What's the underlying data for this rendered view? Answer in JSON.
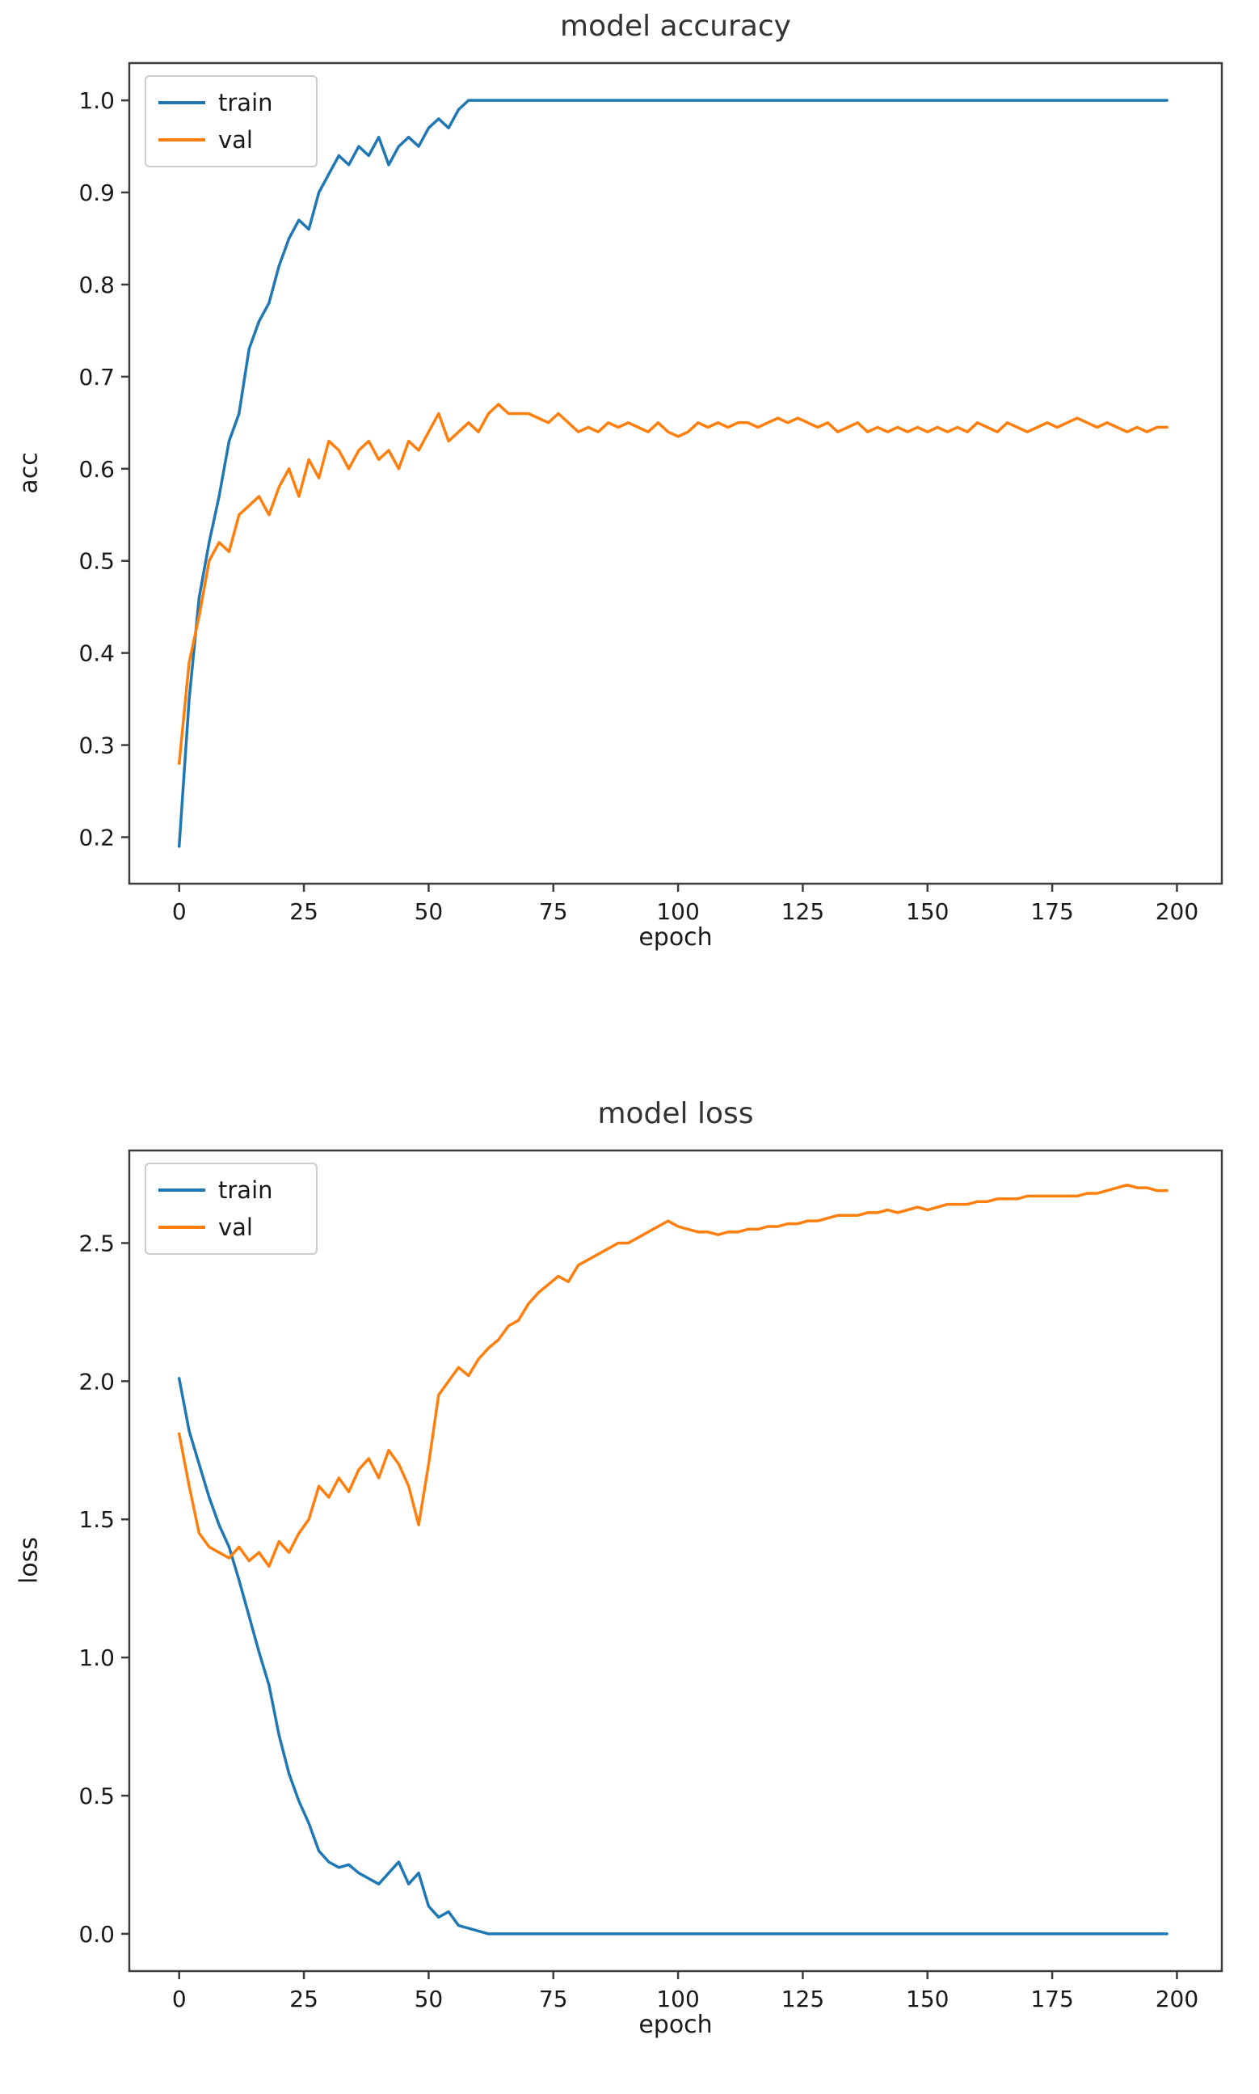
{
  "chart_data": [
    {
      "type": "line",
      "title": "model accuracy",
      "xlabel": "epoch",
      "ylabel": "acc",
      "xlim": [
        -10,
        209
      ],
      "ylim": [
        0.1495,
        1.0405
      ],
      "grid": false,
      "legend_position": "upper left",
      "xticks": [
        "0",
        "25",
        "50",
        "75",
        "100",
        "125",
        "150",
        "175",
        "200"
      ],
      "yticks": [
        "0.2",
        "0.3",
        "0.4",
        "0.5",
        "0.6",
        "0.7",
        "0.8",
        "0.9",
        "1.0"
      ],
      "x": [
        0,
        2,
        4,
        6,
        8,
        10,
        12,
        14,
        16,
        18,
        20,
        22,
        24,
        26,
        28,
        30,
        32,
        34,
        36,
        38,
        40,
        42,
        44,
        46,
        48,
        50,
        52,
        54,
        56,
        58,
        60,
        62,
        64,
        66,
        68,
        70,
        72,
        74,
        76,
        78,
        80,
        82,
        84,
        86,
        88,
        90,
        92,
        94,
        96,
        98,
        100,
        102,
        104,
        106,
        108,
        110,
        112,
        114,
        116,
        118,
        120,
        122,
        124,
        126,
        128,
        130,
        132,
        134,
        136,
        138,
        140,
        142,
        144,
        146,
        148,
        150,
        152,
        154,
        156,
        158,
        160,
        162,
        164,
        166,
        168,
        170,
        172,
        174,
        176,
        178,
        180,
        182,
        184,
        186,
        188,
        190,
        192,
        194,
        196,
        198
      ],
      "series": [
        {
          "name": "train",
          "color": "#1f77b4",
          "values": [
            0.19,
            0.35,
            0.46,
            0.52,
            0.57,
            0.63,
            0.66,
            0.73,
            0.76,
            0.78,
            0.82,
            0.85,
            0.87,
            0.86,
            0.9,
            0.92,
            0.94,
            0.93,
            0.95,
            0.94,
            0.96,
            0.93,
            0.95,
            0.96,
            0.95,
            0.97,
            0.98,
            0.97,
            0.99,
            1.0,
            1.0,
            1.0,
            1.0,
            1.0,
            1.0,
            1.0,
            1.0,
            1.0,
            1.0,
            1.0,
            1.0,
            1.0,
            1.0,
            1.0,
            1.0,
            1.0,
            1.0,
            1.0,
            1.0,
            1.0,
            1.0,
            1.0,
            1.0,
            1.0,
            1.0,
            1.0,
            1.0,
            1.0,
            1.0,
            1.0,
            1.0,
            1.0,
            1.0,
            1.0,
            1.0,
            1.0,
            1.0,
            1.0,
            1.0,
            1.0,
            1.0,
            1.0,
            1.0,
            1.0,
            1.0,
            1.0,
            1.0,
            1.0,
            1.0,
            1.0,
            1.0,
            1.0,
            1.0,
            1.0,
            1.0,
            1.0,
            1.0,
            1.0,
            1.0,
            1.0,
            1.0,
            1.0,
            1.0,
            1.0,
            1.0,
            1.0,
            1.0,
            1.0,
            1.0,
            1.0
          ]
        },
        {
          "name": "val",
          "color": "#ff7f0e",
          "values": [
            0.28,
            0.39,
            0.44,
            0.5,
            0.52,
            0.51,
            0.55,
            0.56,
            0.57,
            0.55,
            0.58,
            0.6,
            0.57,
            0.61,
            0.59,
            0.63,
            0.62,
            0.6,
            0.62,
            0.63,
            0.61,
            0.62,
            0.6,
            0.63,
            0.62,
            0.64,
            0.66,
            0.63,
            0.64,
            0.65,
            0.64,
            0.66,
            0.67,
            0.66,
            0.66,
            0.66,
            0.655,
            0.65,
            0.66,
            0.65,
            0.64,
            0.645,
            0.64,
            0.65,
            0.645,
            0.65,
            0.645,
            0.64,
            0.65,
            0.64,
            0.635,
            0.64,
            0.65,
            0.645,
            0.65,
            0.645,
            0.65,
            0.65,
            0.645,
            0.65,
            0.655,
            0.65,
            0.655,
            0.65,
            0.645,
            0.65,
            0.64,
            0.645,
            0.65,
            0.64,
            0.645,
            0.64,
            0.645,
            0.64,
            0.645,
            0.64,
            0.645,
            0.64,
            0.645,
            0.64,
            0.65,
            0.645,
            0.64,
            0.65,
            0.645,
            0.64,
            0.645,
            0.65,
            0.645,
            0.65,
            0.655,
            0.65,
            0.645,
            0.65,
            0.645,
            0.64,
            0.645,
            0.64,
            0.645,
            0.645
          ]
        }
      ]
    },
    {
      "type": "line",
      "title": "model loss",
      "xlabel": "epoch",
      "ylabel": "loss",
      "xlim": [
        -10,
        209
      ],
      "ylim": [
        -0.135,
        2.835
      ],
      "grid": false,
      "legend_position": "upper left",
      "xticks": [
        "0",
        "25",
        "50",
        "75",
        "100",
        "125",
        "150",
        "175",
        "200"
      ],
      "yticks": [
        "0.0",
        "0.5",
        "1.0",
        "1.5",
        "2.0",
        "2.5"
      ],
      "x": [
        0,
        2,
        4,
        6,
        8,
        10,
        12,
        14,
        16,
        18,
        20,
        22,
        24,
        26,
        28,
        30,
        32,
        34,
        36,
        38,
        40,
        42,
        44,
        46,
        48,
        50,
        52,
        54,
        56,
        58,
        60,
        62,
        64,
        66,
        68,
        70,
        72,
        74,
        76,
        78,
        80,
        82,
        84,
        86,
        88,
        90,
        92,
        94,
        96,
        98,
        100,
        102,
        104,
        106,
        108,
        110,
        112,
        114,
        116,
        118,
        120,
        122,
        124,
        126,
        128,
        130,
        132,
        134,
        136,
        138,
        140,
        142,
        144,
        146,
        148,
        150,
        152,
        154,
        156,
        158,
        160,
        162,
        164,
        166,
        168,
        170,
        172,
        174,
        176,
        178,
        180,
        182,
        184,
        186,
        188,
        190,
        192,
        194,
        196,
        198
      ],
      "series": [
        {
          "name": "train",
          "color": "#1f77b4",
          "values": [
            2.01,
            1.82,
            1.7,
            1.58,
            1.48,
            1.4,
            1.28,
            1.15,
            1.02,
            0.9,
            0.72,
            0.58,
            0.48,
            0.4,
            0.3,
            0.26,
            0.24,
            0.25,
            0.22,
            0.2,
            0.18,
            0.22,
            0.26,
            0.18,
            0.22,
            0.1,
            0.06,
            0.08,
            0.03,
            0.02,
            0.01,
            0.0,
            0.0,
            0.0,
            0.0,
            0.0,
            0.0,
            0.0,
            0.0,
            0.0,
            0.0,
            0.0,
            0.0,
            0.0,
            0.0,
            0.0,
            0.0,
            0.0,
            0.0,
            0.0,
            0.0,
            0.0,
            0.0,
            0.0,
            0.0,
            0.0,
            0.0,
            0.0,
            0.0,
            0.0,
            0.0,
            0.0,
            0.0,
            0.0,
            0.0,
            0.0,
            0.0,
            0.0,
            0.0,
            0.0,
            0.0,
            0.0,
            0.0,
            0.0,
            0.0,
            0.0,
            0.0,
            0.0,
            0.0,
            0.0,
            0.0,
            0.0,
            0.0,
            0.0,
            0.0,
            0.0,
            0.0,
            0.0,
            0.0,
            0.0,
            0.0,
            0.0,
            0.0,
            0.0,
            0.0,
            0.0,
            0.0,
            0.0,
            0.0,
            0.0
          ]
        },
        {
          "name": "val",
          "color": "#ff7f0e",
          "values": [
            1.81,
            1.62,
            1.45,
            1.4,
            1.38,
            1.36,
            1.4,
            1.35,
            1.38,
            1.33,
            1.42,
            1.38,
            1.45,
            1.5,
            1.62,
            1.58,
            1.65,
            1.6,
            1.68,
            1.72,
            1.65,
            1.75,
            1.7,
            1.62,
            1.48,
            1.7,
            1.95,
            2.0,
            2.05,
            2.02,
            2.08,
            2.12,
            2.15,
            2.2,
            2.22,
            2.28,
            2.32,
            2.35,
            2.38,
            2.36,
            2.42,
            2.44,
            2.46,
            2.48,
            2.5,
            2.5,
            2.52,
            2.54,
            2.56,
            2.58,
            2.56,
            2.55,
            2.54,
            2.54,
            2.53,
            2.54,
            2.54,
            2.55,
            2.55,
            2.56,
            2.56,
            2.57,
            2.57,
            2.58,
            2.58,
            2.59,
            2.6,
            2.6,
            2.6,
            2.61,
            2.61,
            2.62,
            2.61,
            2.62,
            2.63,
            2.62,
            2.63,
            2.64,
            2.64,
            2.64,
            2.65,
            2.65,
            2.66,
            2.66,
            2.66,
            2.67,
            2.67,
            2.67,
            2.67,
            2.67,
            2.67,
            2.68,
            2.68,
            2.69,
            2.7,
            2.71,
            2.7,
            2.7,
            2.69,
            2.69
          ]
        }
      ]
    }
  ]
}
